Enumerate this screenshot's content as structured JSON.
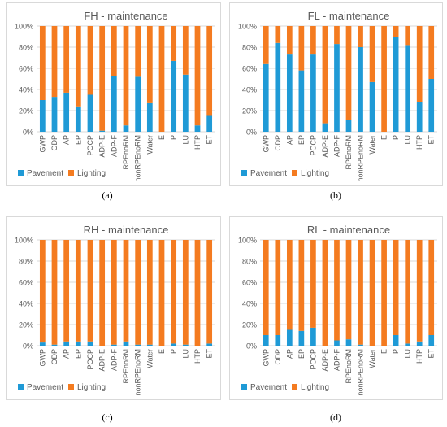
{
  "colors": {
    "pavement": "#1f9ad6",
    "lighting": "#f47b20",
    "grid": "#d9d9d9",
    "text": "#595959"
  },
  "captions": [
    "(a)",
    "(b)",
    "(c)",
    "(d)"
  ],
  "chart_data": [
    {
      "type": "bar",
      "stacked": "percent",
      "title": "FH - maintenance",
      "categories": [
        "GWP",
        "ODP",
        "AP",
        "EP",
        "POCP",
        "ADP-E",
        "ADP-F",
        "RPEnoRM",
        "nonRPEnoRM",
        "Water",
        "E",
        "P",
        "LU",
        "HTP",
        "ET"
      ],
      "series": [
        {
          "name": "Pavement",
          "values": [
            30,
            33,
            37,
            24,
            35,
            1,
            53,
            6,
            52,
            27,
            0,
            67,
            54,
            6,
            15
          ]
        },
        {
          "name": "Lighting",
          "values": [
            70,
            67,
            63,
            76,
            65,
            99,
            47,
            94,
            48,
            73,
            100,
            33,
            46,
            94,
            85
          ]
        }
      ],
      "y_ticks": [
        "0%",
        "20%",
        "40%",
        "60%",
        "80%",
        "100%"
      ],
      "ylim": [
        0,
        100
      ],
      "grid": true,
      "legend": "bottom-left"
    },
    {
      "type": "bar",
      "stacked": "percent",
      "title": "FL - maintenance",
      "categories": [
        "GWP",
        "ODP",
        "AP",
        "EP",
        "POCP",
        "ADP-E",
        "ADP-F",
        "RPEnoRM",
        "nonRPEnoRM",
        "Water",
        "E",
        "P",
        "LU",
        "HTP",
        "ET"
      ],
      "series": [
        {
          "name": "Pavement",
          "values": [
            64,
            84,
            73,
            58,
            73,
            8,
            83,
            11,
            80,
            47,
            0,
            90,
            82,
            28,
            50
          ]
        },
        {
          "name": "Lighting",
          "values": [
            36,
            16,
            27,
            42,
            27,
            92,
            17,
            89,
            20,
            53,
            100,
            10,
            18,
            72,
            50
          ]
        }
      ],
      "y_ticks": [
        "0%",
        "20%",
        "40%",
        "60%",
        "80%",
        "100%"
      ],
      "ylim": [
        0,
        100
      ],
      "grid": true,
      "legend": "bottom-left"
    },
    {
      "type": "bar",
      "stacked": "percent",
      "title": "RH - maintenance",
      "categories": [
        "GWP",
        "ODP",
        "AP",
        "EP",
        "POCP",
        "ADP-E",
        "ADP-F",
        "RPEnoRM",
        "nonRPEnoRM",
        "Water",
        "E",
        "P",
        "LU",
        "HTP",
        "ET"
      ],
      "series": [
        {
          "name": "Pavement",
          "values": [
            3,
            1,
            4,
            4,
            4,
            0,
            1,
            4,
            1,
            1,
            0,
            2,
            1,
            0,
            2
          ]
        },
        {
          "name": "Lighting",
          "values": [
            97,
            99,
            96,
            96,
            96,
            100,
            99,
            96,
            99,
            99,
            100,
            98,
            99,
            100,
            98
          ]
        }
      ],
      "y_ticks": [
        "0%",
        "20%",
        "40%",
        "60%",
        "80%",
        "100%"
      ],
      "ylim": [
        0,
        100
      ],
      "grid": true,
      "legend": "bottom-left"
    },
    {
      "type": "bar",
      "stacked": "percent",
      "title": "RL - maintenance",
      "categories": [
        "GWP",
        "ODP",
        "AP",
        "EP",
        "POCP",
        "ADP-E",
        "ADP-F",
        "RPEnoRM",
        "nonRPEnoRM",
        "Water",
        "E",
        "P",
        "LU",
        "HTP",
        "ET"
      ],
      "series": [
        {
          "name": "Pavement",
          "values": [
            10,
            10,
            15,
            14,
            17,
            0,
            5,
            6,
            1,
            0,
            0,
            10,
            2,
            4,
            10
          ]
        },
        {
          "name": "Lighting",
          "values": [
            90,
            90,
            85,
            86,
            83,
            100,
            95,
            94,
            99,
            100,
            100,
            90,
            98,
            96,
            90
          ]
        }
      ],
      "y_ticks": [
        "0%",
        "20%",
        "40%",
        "60%",
        "80%",
        "100%"
      ],
      "ylim": [
        0,
        100
      ],
      "grid": true,
      "legend": "bottom-left"
    }
  ]
}
